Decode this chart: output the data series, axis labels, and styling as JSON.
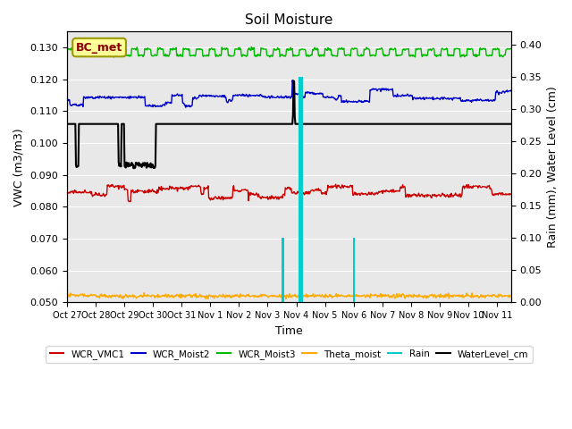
{
  "title": "Soil Moisture",
  "xlabel": "Time",
  "ylabel_left": "VWC (m3/m3)",
  "ylabel_right": "Rain (mm), Water Level (cm)",
  "xlim_days": [
    0,
    15.5
  ],
  "ylim_left": [
    0.05,
    0.135
  ],
  "ylim_right": [
    0.0,
    0.42
  ],
  "xtick_labels": [
    "Oct 27",
    "Oct 28",
    "Oct 29",
    "Oct 30",
    "Oct 31",
    "Nov 1",
    "Nov 2",
    "Nov 3",
    "Nov 4",
    "Nov 5",
    "Nov 6",
    "Nov 7",
    "Nov 8",
    "Nov 9",
    "Nov 10",
    "Nov 11"
  ],
  "background_color": "#e8e8e8",
  "annotation_text": "BC_met",
  "colors": {
    "WCR_VMC1": "#cc0000",
    "WCR_Moist2": "#0000cc",
    "WCR_Moist3": "#00bb00",
    "Theta_moist": "#ffaa00",
    "Rain": "#00cccc",
    "WaterLevel_cm": "#000000"
  },
  "yticks_left": [
    0.05,
    0.06,
    0.07,
    0.08,
    0.09,
    0.1,
    0.11,
    0.12,
    0.13
  ],
  "yticks_right": [
    0.0,
    0.05,
    0.1,
    0.15,
    0.2,
    0.25,
    0.3,
    0.35,
    0.4
  ]
}
